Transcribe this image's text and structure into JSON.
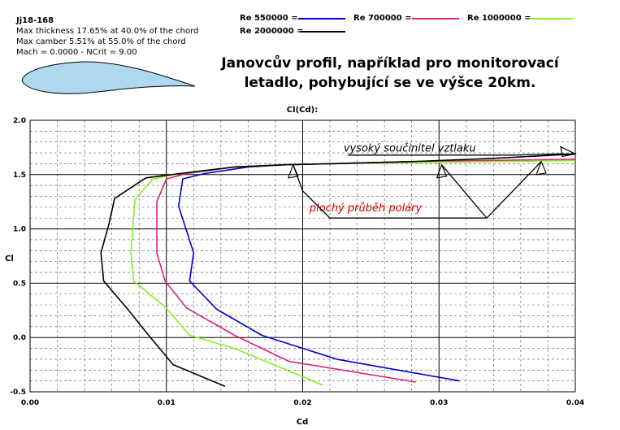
{
  "airfoil": {
    "name": "Jj18-168",
    "thickness_line": "Max thickness 17.65% at 40.0% of the chord",
    "camber_line": "Max camber 5.51% at 55.0% of the chord",
    "mach_line": "Mach = 0.0000 - NCrit = 9.00",
    "fill_color": "#add8f0"
  },
  "headline": {
    "line1": "Janovcův profil, například pro monitorovací",
    "line2": "letadlo, pohybující se ve výšce 20km."
  },
  "chart_data": {
    "type": "line",
    "title": "Cl(Cd):",
    "xlabel": "Cd",
    "ylabel": "Cl",
    "xlim": [
      0.0,
      0.04
    ],
    "ylim": [
      -0.5,
      2.0
    ],
    "x_ticks": [
      "0.00",
      "0.01",
      "0.02",
      "0.03",
      "0.04"
    ],
    "y_ticks": [
      "-0.5",
      "0.0",
      "0.5",
      "1.0",
      "1.5",
      "2.0"
    ],
    "grid": true,
    "legend_placement": "top",
    "series": [
      {
        "name": "Re 550000 =",
        "color": "#0000cc",
        "points": [
          [
            0.0315,
            -0.4
          ],
          [
            0.0225,
            -0.2
          ],
          [
            0.017,
            0.02
          ],
          [
            0.0137,
            0.26
          ],
          [
            0.0117,
            0.52
          ],
          [
            0.012,
            0.78
          ],
          [
            0.0109,
            1.21
          ],
          [
            0.0112,
            1.46
          ],
          [
            0.0128,
            1.51
          ],
          [
            0.016,
            1.57
          ],
          [
            0.0185,
            1.59
          ],
          [
            0.022,
            1.6
          ],
          [
            0.028,
            1.62
          ],
          [
            0.034,
            1.63
          ],
          [
            0.04,
            1.64
          ]
        ]
      },
      {
        "name": "Re 700000 =",
        "color": "#e0207a",
        "points": [
          [
            0.0283,
            -0.41
          ],
          [
            0.019,
            -0.22
          ],
          [
            0.015,
            0.02
          ],
          [
            0.0115,
            0.27
          ],
          [
            0.0099,
            0.52
          ],
          [
            0.0093,
            0.78
          ],
          [
            0.0093,
            1.25
          ],
          [
            0.01,
            1.46
          ],
          [
            0.0115,
            1.51
          ],
          [
            0.015,
            1.57
          ],
          [
            0.0185,
            1.59
          ],
          [
            0.022,
            1.6
          ],
          [
            0.028,
            1.62
          ],
          [
            0.034,
            1.63
          ],
          [
            0.04,
            1.64
          ]
        ]
      },
      {
        "name": "Re 1000000 =",
        "color": "#88ee22",
        "points": [
          [
            0.0215,
            -0.44
          ],
          [
            0.015,
            -0.1
          ],
          [
            0.0117,
            0.02
          ],
          [
            0.01,
            0.27
          ],
          [
            0.0076,
            0.52
          ],
          [
            0.0074,
            0.78
          ],
          [
            0.0077,
            1.27
          ],
          [
            0.009,
            1.46
          ],
          [
            0.011,
            1.51
          ],
          [
            0.015,
            1.57
          ],
          [
            0.0185,
            1.59
          ],
          [
            0.022,
            1.6
          ],
          [
            0.028,
            1.61
          ],
          [
            0.034,
            1.62
          ],
          [
            0.04,
            1.63
          ]
        ]
      },
      {
        "name": "Re 2000000 =",
        "color": "#000000",
        "points": [
          [
            0.0143,
            -0.45
          ],
          [
            0.0105,
            -0.25
          ],
          [
            0.0087,
            0.02
          ],
          [
            0.0071,
            0.27
          ],
          [
            0.0054,
            0.52
          ],
          [
            0.0052,
            0.78
          ],
          [
            0.0058,
            1.05
          ],
          [
            0.0062,
            1.28
          ],
          [
            0.0085,
            1.47
          ],
          [
            0.011,
            1.51
          ],
          [
            0.015,
            1.57
          ],
          [
            0.0185,
            1.59
          ],
          [
            0.022,
            1.6
          ],
          [
            0.028,
            1.62
          ],
          [
            0.034,
            1.65
          ],
          [
            0.04,
            1.69
          ]
        ]
      }
    ],
    "annotations": [
      {
        "text": "vysoký součinitel vztlaku",
        "color": "#000000",
        "anchor": [
          0.023,
          1.71
        ],
        "path": [
          [
            0.0233,
            1.68
          ],
          [
            0.0355,
            1.68
          ],
          [
            0.0385,
            1.69
          ],
          [
            0.04,
            1.69
          ]
        ]
      },
      {
        "text": "plochý průběh poláry",
        "color": "#dd0000",
        "anchor": [
          0.0205,
          1.16
        ],
        "path": [
          [
            0.0193,
            1.59
          ],
          [
            0.02,
            1.35
          ],
          [
            0.022,
            1.1
          ],
          [
            0.0335,
            1.1
          ],
          [
            0.0375,
            1.62
          ]
        ],
        "branch": [
          [
            0.02,
            1.35
          ],
          [
            0.0193,
            1.59
          ]
        ]
      }
    ]
  }
}
